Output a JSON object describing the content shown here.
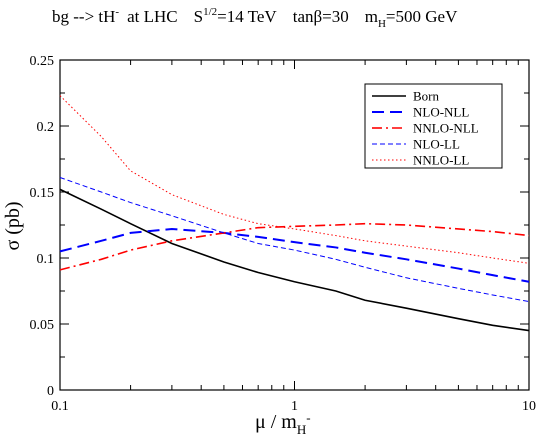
{
  "chart_data": {
    "type": "line",
    "title_parts": {
      "process": "bg --> tH",
      "process_sup": "-",
      "collider": "at  LHC",
      "energy_base": "S",
      "energy_sup": "1/2",
      "energy_rest": "=14 TeV",
      "tanb": "tanβ=30",
      "mass_base": "m",
      "mass_sub": "H",
      "mass_rest": "=500 GeV"
    },
    "xlabel": {
      "base": "μ / m",
      "sub": "H",
      "sup": "-"
    },
    "ylabel": "σ  (pb)",
    "x_scale": "log",
    "xlim": [
      0.1,
      10
    ],
    "ylim": [
      0,
      0.25
    ],
    "x_ticks": [
      {
        "value": 0.1,
        "label": "0.1"
      },
      {
        "value": 1,
        "label": "1"
      },
      {
        "value": 10,
        "label": "10"
      }
    ],
    "y_ticks": [
      {
        "value": 0,
        "label": "0"
      },
      {
        "value": 0.05,
        "label": "0.05"
      },
      {
        "value": 0.1,
        "label": "0.1"
      },
      {
        "value": 0.15,
        "label": "0.15"
      },
      {
        "value": 0.2,
        "label": "0.2"
      },
      {
        "value": 0.25,
        "label": "0.25"
      }
    ],
    "legend_position": "top-right",
    "series": [
      {
        "name": "Born",
        "color": "#000000",
        "style": "solid",
        "points": [
          [
            0.1,
            0.152
          ],
          [
            0.15,
            0.137
          ],
          [
            0.2,
            0.126
          ],
          [
            0.3,
            0.111
          ],
          [
            0.5,
            0.097
          ],
          [
            0.7,
            0.089
          ],
          [
            1,
            0.082
          ],
          [
            1.5,
            0.075
          ],
          [
            2,
            0.068
          ],
          [
            3,
            0.062
          ],
          [
            5,
            0.054
          ],
          [
            7,
            0.049
          ],
          [
            10,
            0.045
          ]
        ]
      },
      {
        "name": "NLO-NLL",
        "color": "#0000ff",
        "style": "long-dash",
        "points": [
          [
            0.1,
            0.105
          ],
          [
            0.15,
            0.113
          ],
          [
            0.2,
            0.119
          ],
          [
            0.3,
            0.122
          ],
          [
            0.5,
            0.119
          ],
          [
            0.7,
            0.116
          ],
          [
            1,
            0.112
          ],
          [
            1.5,
            0.108
          ],
          [
            2,
            0.104
          ],
          [
            3,
            0.099
          ],
          [
            5,
            0.092
          ],
          [
            7,
            0.087
          ],
          [
            10,
            0.082
          ]
        ]
      },
      {
        "name": "NNLO-NLL",
        "color": "#ff0000",
        "style": "dash-dot",
        "points": [
          [
            0.1,
            0.091
          ],
          [
            0.15,
            0.099
          ],
          [
            0.2,
            0.106
          ],
          [
            0.3,
            0.113
          ],
          [
            0.5,
            0.119
          ],
          [
            0.7,
            0.123
          ],
          [
            1,
            0.124
          ],
          [
            1.5,
            0.125
          ],
          [
            2,
            0.126
          ],
          [
            3,
            0.125
          ],
          [
            5,
            0.122
          ],
          [
            7,
            0.12
          ],
          [
            10,
            0.117
          ]
        ]
      },
      {
        "name": "NLO-LL",
        "color": "#0000ff",
        "style": "short-dash",
        "points": [
          [
            0.1,
            0.161
          ],
          [
            0.15,
            0.15
          ],
          [
            0.2,
            0.142
          ],
          [
            0.3,
            0.132
          ],
          [
            0.5,
            0.119
          ],
          [
            0.7,
            0.111
          ],
          [
            1,
            0.106
          ],
          [
            1.5,
            0.099
          ],
          [
            2,
            0.093
          ],
          [
            3,
            0.085
          ],
          [
            5,
            0.077
          ],
          [
            7,
            0.072
          ],
          [
            10,
            0.067
          ]
        ]
      },
      {
        "name": "NNLO-LL",
        "color": "#ff0000",
        "style": "dotted",
        "points": [
          [
            0.1,
            0.223
          ],
          [
            0.15,
            0.192
          ],
          [
            0.2,
            0.166
          ],
          [
            0.3,
            0.148
          ],
          [
            0.5,
            0.133
          ],
          [
            0.7,
            0.126
          ],
          [
            1,
            0.122
          ],
          [
            1.5,
            0.117
          ],
          [
            2,
            0.113
          ],
          [
            3,
            0.109
          ],
          [
            5,
            0.104
          ],
          [
            7,
            0.1
          ],
          [
            10,
            0.096
          ]
        ]
      }
    ]
  }
}
